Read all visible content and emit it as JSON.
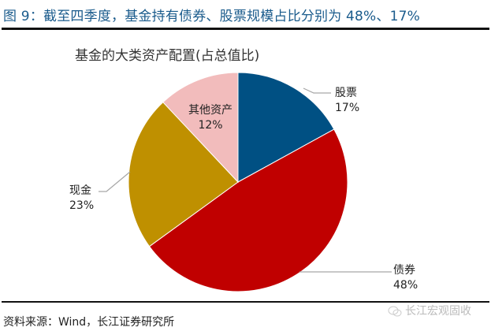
{
  "figure": {
    "title": "图 9：截至四季度，基金持有债券、股票规模占比分别为 48%、17%",
    "source": "资料来源：Wind，长江证券研究所",
    "watermark": "长江宏观固收"
  },
  "chart_data": {
    "type": "pie",
    "title": "基金的大类资产配置(占总值比)",
    "categories": [
      "股票",
      "债券",
      "现金",
      "其他资产"
    ],
    "values": [
      17,
      48,
      23,
      12
    ],
    "unit": "%",
    "colors": [
      "#005083",
      "#c00000",
      "#bf9000",
      "#f2bcbc"
    ],
    "start_angle": "12 o'clock, clockwise",
    "labels": [
      {
        "name": "股票",
        "pct": "17%"
      },
      {
        "name": "债券",
        "pct": "48%"
      },
      {
        "name": "现金",
        "pct": "23%"
      },
      {
        "name": "其他资产",
        "pct": "12%"
      }
    ],
    "legend": "none (data labels with leader lines)"
  }
}
